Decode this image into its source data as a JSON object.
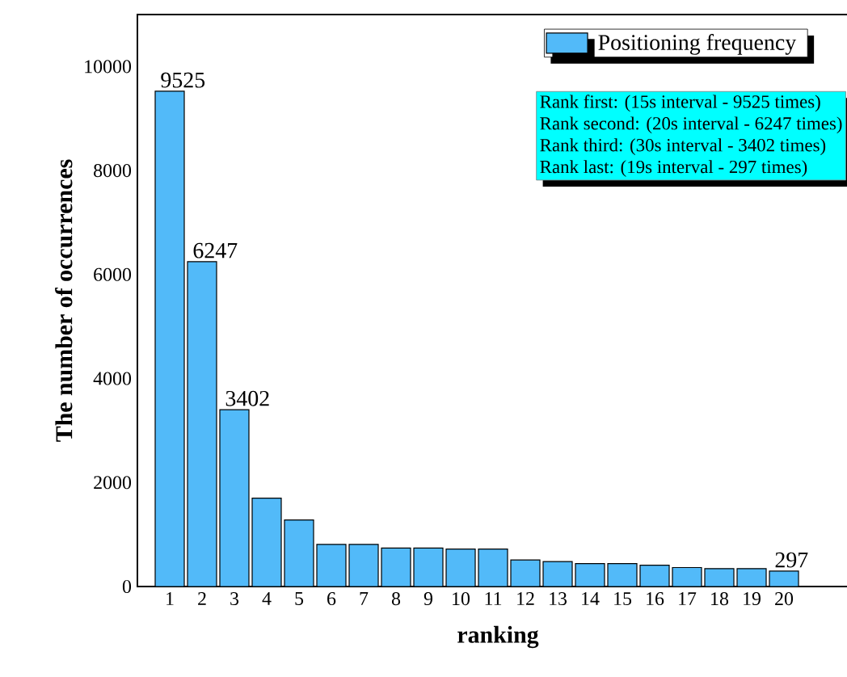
{
  "chart_data": {
    "type": "bar",
    "categories": [
      "1",
      "2",
      "3",
      "4",
      "5",
      "6",
      "7",
      "8",
      "9",
      "10",
      "11",
      "12",
      "13",
      "14",
      "15",
      "16",
      "17",
      "18",
      "19",
      "20"
    ],
    "series": [
      {
        "name": "Positioning frequency",
        "color": "#52baf9",
        "values": [
          9525,
          6247,
          3402,
          1700,
          1280,
          810,
          810,
          740,
          740,
          720,
          720,
          510,
          480,
          440,
          440,
          410,
          365,
          345,
          345,
          297
        ]
      }
    ],
    "value_labels": [
      "9525",
      "6247",
      "3402",
      null,
      null,
      null,
      null,
      null,
      null,
      null,
      null,
      null,
      null,
      null,
      null,
      null,
      null,
      null,
      null,
      "297"
    ],
    "xlabel": "ranking",
    "ylabel": "The number of occurrences",
    "ylim": [
      0,
      11000
    ],
    "yticks": [
      0,
      2000,
      4000,
      6000,
      8000,
      10000
    ],
    "legend": "top right",
    "annotations": [
      "Rank first: (15s interval - 9525 times)",
      "Rank second: (20s interval - 6247 times)",
      "Rank third: (30s interval - 3402 times)",
      "Rank last: (19s interval - 297 times)"
    ]
  }
}
